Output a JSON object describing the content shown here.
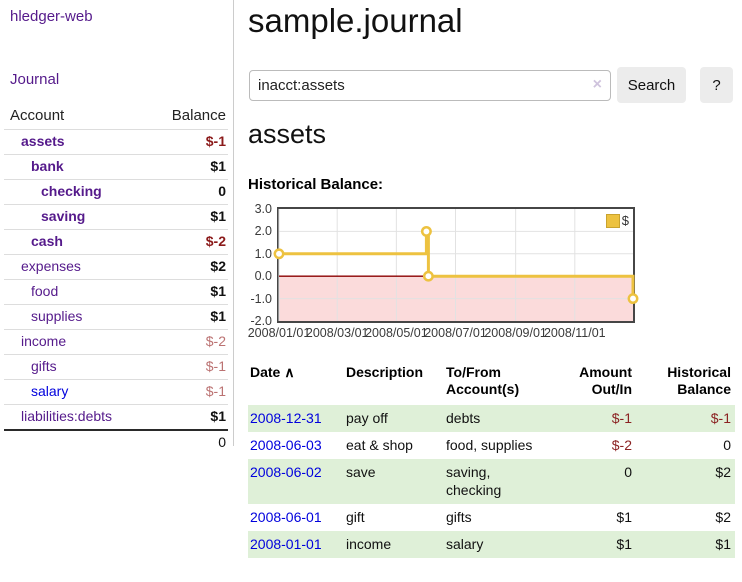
{
  "colors": {
    "link_purple": "#551a8b",
    "link_blue": "#0000dd",
    "negative_strong": "#8b1a1a",
    "negative_soft": "#bb7272",
    "negative_table": "#8b2222",
    "row_stripe_green": "#dff0d8",
    "chart_series_yellow": "#edc240",
    "chart_negative_fill": "#fbdbdb",
    "chart_zero_line": "#8b0000",
    "button_gray": "#ececec"
  },
  "sidebar": {
    "brand": "hledger-web",
    "journal_label": "Journal",
    "accounts_table": {
      "headers": {
        "account": "Account",
        "balance": "Balance"
      },
      "rows": [
        {
          "name": "assets",
          "indent": 1,
          "bold": true,
          "balance": "$-1",
          "balance_style": "neg-strong"
        },
        {
          "name": "bank",
          "indent": 2,
          "bold": true,
          "balance": "$1",
          "balance_style": "pos"
        },
        {
          "name": "checking",
          "indent": 3,
          "bold": true,
          "balance": "0",
          "balance_style": "pos"
        },
        {
          "name": "saving",
          "indent": 3,
          "bold": true,
          "balance": "$1",
          "balance_style": "pos"
        },
        {
          "name": "cash",
          "indent": 2,
          "bold": true,
          "balance": "$-2",
          "balance_style": "neg-strong"
        },
        {
          "name": "expenses",
          "indent": 1,
          "bold": false,
          "balance": "$2",
          "balance_style": "pos"
        },
        {
          "name": "food",
          "indent": 2,
          "bold": false,
          "balance": "$1",
          "balance_style": "pos"
        },
        {
          "name": "supplies",
          "indent": 2,
          "bold": false,
          "balance": "$1",
          "balance_style": "pos"
        },
        {
          "name": "income",
          "indent": 1,
          "bold": false,
          "balance": "$-2",
          "balance_style": "neg-soft"
        },
        {
          "name": "gifts",
          "indent": 2,
          "bold": false,
          "balance": "$-1",
          "balance_style": "neg-soft"
        },
        {
          "name": "salary",
          "indent": 2,
          "bold": false,
          "balance": "$-1",
          "balance_style": "neg-soft",
          "link_color": "blue"
        },
        {
          "name": "liabilities:debts",
          "indent": 1,
          "bold": false,
          "balance": "$1",
          "balance_style": "pos"
        }
      ],
      "total": "0"
    }
  },
  "main": {
    "title": "sample.journal",
    "search": {
      "value": "inacct:assets",
      "clear_icon": "×",
      "button": "Search",
      "help": "?"
    },
    "account_heading": "assets",
    "chart_label": "Historical Balance:"
  },
  "chart_data": {
    "type": "line",
    "step": true,
    "title": "Historical Balance",
    "series": [
      {
        "name": "$",
        "color": "#edc240",
        "points": [
          [
            "2008-01-01",
            1
          ],
          [
            "2008-06-01",
            2
          ],
          [
            "2008-06-03",
            0
          ],
          [
            "2008-12-31",
            -1
          ]
        ]
      }
    ],
    "xlim": [
      "2008-01-01",
      "2008-12-31"
    ],
    "ylim": [
      -2,
      3
    ],
    "y_ticks": [
      "3.0",
      "2.0",
      "1.0",
      "0.0",
      "-1.0",
      "-2.0"
    ],
    "x_ticks": [
      {
        "date": "2008-01-01",
        "label": "2008/01/01"
      },
      {
        "date": "2008-03-01",
        "label": "2008/03/01"
      },
      {
        "date": "2008-05-01",
        "label": "2008/05/01"
      },
      {
        "date": "2008-07-01",
        "label": "2008/07/01"
      },
      {
        "date": "2008-09-01",
        "label": "2008/09/01"
      },
      {
        "date": "2008-11-01",
        "label": "2008/11/01"
      }
    ],
    "grid": true,
    "grid_color": "#e2e2e2",
    "negative_region_color": "#fbdbdb",
    "zero_line_color": "#8b0000",
    "legend": {
      "position": "top-right",
      "label": "$",
      "swatch_color": "#edc240"
    }
  },
  "transactions": {
    "headers": {
      "date": "Date",
      "sort_icon": "∧",
      "description": "Description",
      "tofrom": "To/From Account(s)",
      "amount": "Amount Out/In",
      "balance": "Historical Balance"
    },
    "rows": [
      {
        "date": "2008-12-31",
        "description": "pay off",
        "tofrom": "debts",
        "amount": "$-1",
        "amount_negative": true,
        "balance": "$-1",
        "balance_negative": true
      },
      {
        "date": "2008-06-03",
        "description": "eat & shop",
        "tofrom": "food, supplies",
        "amount": "$-2",
        "amount_negative": true,
        "balance": "0",
        "balance_negative": false
      },
      {
        "date": "2008-06-02",
        "description": "save",
        "tofrom": "saving, checking",
        "amount": "0",
        "amount_negative": false,
        "balance": "$2",
        "balance_negative": false
      },
      {
        "date": "2008-06-01",
        "description": "gift",
        "tofrom": "gifts",
        "amount": "$1",
        "amount_negative": false,
        "balance": "$2",
        "balance_negative": false
      },
      {
        "date": "2008-01-01",
        "description": "income",
        "tofrom": "salary",
        "amount": "$1",
        "amount_negative": false,
        "balance": "$1",
        "balance_negative": false
      }
    ]
  }
}
